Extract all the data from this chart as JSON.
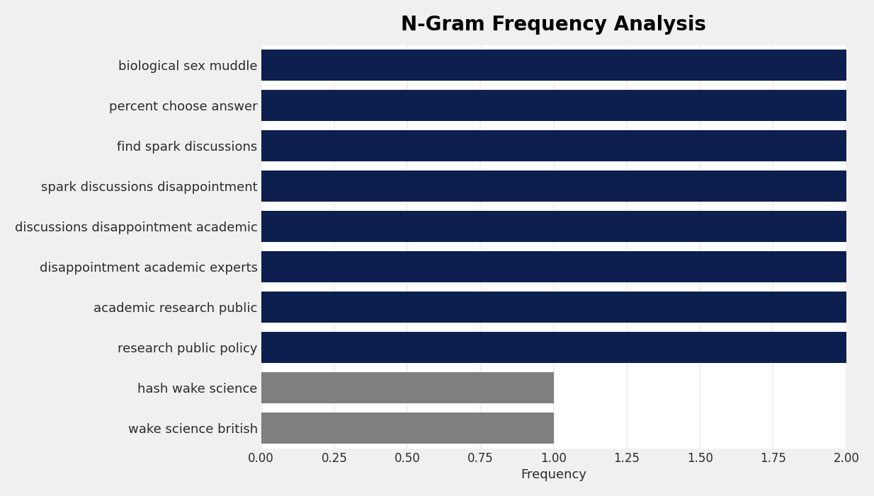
{
  "title": "N-Gram Frequency Analysis",
  "xlabel": "Frequency",
  "categories": [
    "wake science british",
    "hash wake science",
    "research public policy",
    "academic research public",
    "disappointment academic experts",
    "discussions disappointment academic",
    "spark discussions disappointment",
    "find spark discussions",
    "percent choose answer",
    "biological sex muddle"
  ],
  "values": [
    1,
    1,
    2,
    2,
    2,
    2,
    2,
    2,
    2,
    2
  ],
  "bar_colors": [
    "#7f7f7f",
    "#7f7f7f",
    "#0d1f4e",
    "#0d1f4e",
    "#0d1f4e",
    "#0d1f4e",
    "#0d1f4e",
    "#0d1f4e",
    "#0d1f4e",
    "#0d1f4e"
  ],
  "xlim": [
    0,
    2.0
  ],
  "xticks": [
    0.0,
    0.25,
    0.5,
    0.75,
    1.0,
    1.25,
    1.5,
    1.75,
    2.0
  ],
  "xtick_labels": [
    "0.00",
    "0.25",
    "0.50",
    "0.75",
    "1.00",
    "1.25",
    "1.50",
    "1.75",
    "2.00"
  ],
  "outer_background_color": "#f0f0f0",
  "plot_background_color": "#ffffff",
  "title_fontsize": 20,
  "label_fontsize": 13,
  "tick_fontsize": 12,
  "bar_height": 0.78,
  "grid_color": "#f0f0f0",
  "text_color": "#2b2b2b"
}
